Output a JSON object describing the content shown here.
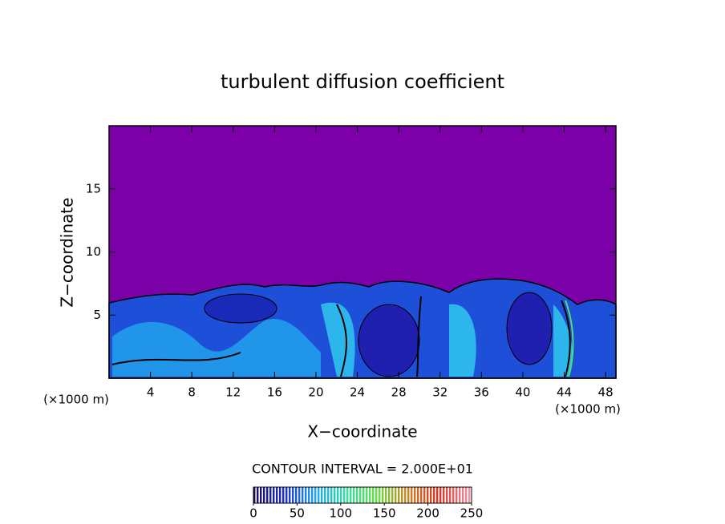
{
  "chart_data": {
    "type": "contour",
    "title": "turbulent diffusion coefficient",
    "x_label": "X−coordinate",
    "y_label": "Z−coordinate",
    "x_unit_labels": [
      "(×1000 m)",
      "(×1000 m)"
    ],
    "xlim": [
      0,
      49
    ],
    "xticks": [
      4,
      8,
      12,
      16,
      20,
      24,
      28,
      32,
      36,
      40,
      44,
      48
    ],
    "ylim": [
      0,
      20
    ],
    "yticks": [
      5,
      10,
      15
    ],
    "contour_interval_label": "CONTOUR INTERVAL = 2.000E+01",
    "colorbar": {
      "range": [
        0,
        250
      ],
      "ticks": [
        0,
        50,
        100,
        150,
        200,
        250
      ],
      "colormap": [
        "#1a0a6a",
        "#1a2fd0",
        "#18a8f0",
        "#30e0a0",
        "#60e040",
        "#d08020",
        "#e03020",
        "#f090a0"
      ]
    },
    "background_color": "#7c00a8"
  }
}
